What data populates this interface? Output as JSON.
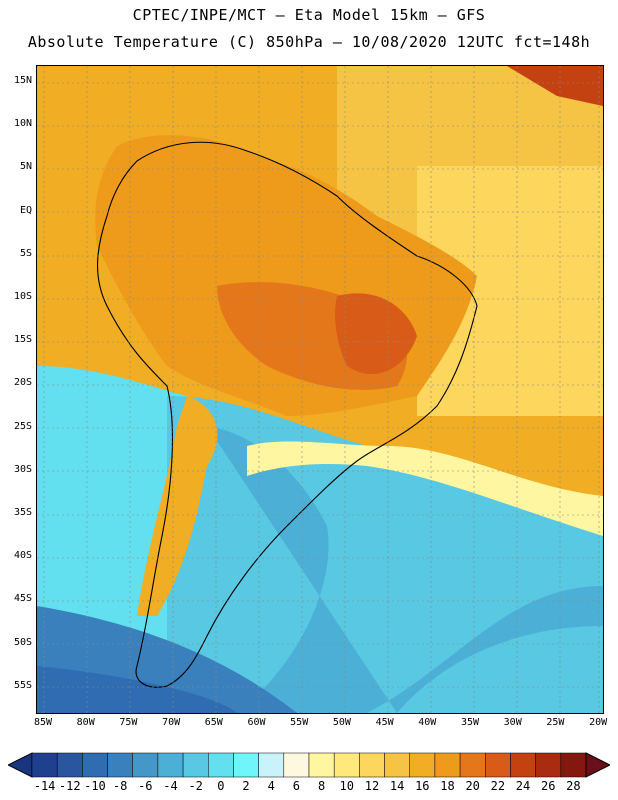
{
  "header": {
    "line1": "CPTEC/INPE/MCT —  Eta Model 15km — GFS",
    "line2": "Absolute Temperature (C) 850hPa — 10/08/2020 12UTC fct=148h"
  },
  "axes": {
    "lat_labels": [
      "15N",
      "10N",
      "5N",
      "EQ",
      "5S",
      "10S",
      "15S",
      "20S",
      "25S",
      "30S",
      "35S",
      "40S",
      "45S",
      "50S",
      "55S"
    ],
    "lon_labels": [
      "85W",
      "80W",
      "75W",
      "70W",
      "65W",
      "60W",
      "55W",
      "50W",
      "45W",
      "40W",
      "35W",
      "30W",
      "25W",
      "20W"
    ]
  },
  "colorbar": {
    "labels": [
      "-14",
      "-12",
      "-10",
      "-8",
      "-6",
      "-4",
      "-2",
      "0",
      "2",
      "4",
      "6",
      "8",
      "10",
      "12",
      "14",
      "16",
      "18",
      "20",
      "22",
      "24",
      "26",
      "28"
    ],
    "colors": [
      "#1f3f8f",
      "#2a56a0",
      "#2f6cb2",
      "#3a80bd",
      "#4597c8",
      "#4cb0d6",
      "#58c8e3",
      "#63e0ef",
      "#6ef6fb",
      "#c9f2fb",
      "#fff8e0",
      "#fff6a2",
      "#ffe97a",
      "#fcd65d",
      "#f5c444",
      "#f1ad23",
      "#ee9a1a",
      "#e5771b",
      "#d85c17",
      "#c44112",
      "#a92c10",
      "#85180e"
    ]
  },
  "chart_data": {
    "type": "heatmap",
    "title": "Absolute Temperature (C) 850hPa",
    "xlabel": "",
    "ylabel": "",
    "units": "C",
    "xlim": [
      "85W",
      "20W"
    ],
    "ylim": [
      "55S",
      "15N"
    ],
    "color_scale": [
      -14,
      28
    ],
    "grid": true
  }
}
